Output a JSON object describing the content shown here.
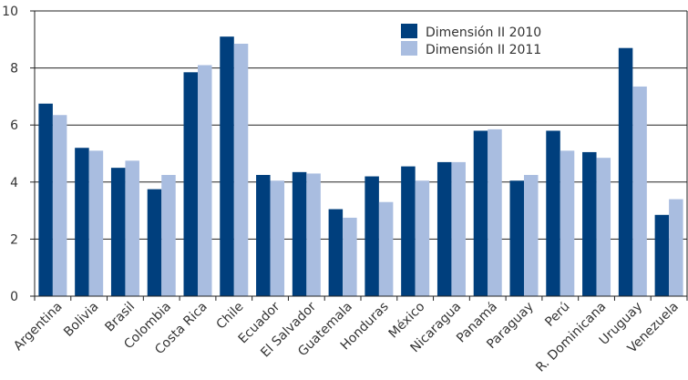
{
  "chart_data": {
    "type": "bar",
    "title": "",
    "xlabel": "",
    "ylabel": "",
    "ylim": [
      0,
      10
    ],
    "yticks": [
      0,
      2,
      4,
      6,
      8,
      10
    ],
    "grid": "horizontal",
    "legend_position": "top-right",
    "categories": [
      "Argentina",
      "Bolivia",
      "Brasil",
      "Colombia",
      "Costa Rica",
      "Chile",
      "Ecuador",
      "El Salvador",
      "Guatemala",
      "Honduras",
      "México",
      "Nicaragua",
      "Panamá",
      "Paraguay",
      "Perú",
      "R. Dominicana",
      "Uruguay",
      "Venezuela"
    ],
    "series": [
      {
        "name": "Dimensión II 2010",
        "color": "#003f7d",
        "values": [
          6.75,
          5.2,
          4.5,
          3.75,
          7.85,
          9.1,
          4.25,
          4.35,
          3.05,
          4.2,
          4.55,
          4.7,
          5.8,
          4.05,
          5.8,
          5.05,
          8.7,
          2.85
        ]
      },
      {
        "name": "Dimensión II 2011",
        "color": "#a9bde0",
        "values": [
          6.35,
          5.1,
          4.75,
          4.25,
          8.1,
          8.85,
          4.05,
          4.3,
          2.75,
          3.3,
          4.05,
          4.7,
          5.85,
          4.25,
          5.1,
          4.85,
          7.35,
          3.4
        ]
      }
    ]
  }
}
